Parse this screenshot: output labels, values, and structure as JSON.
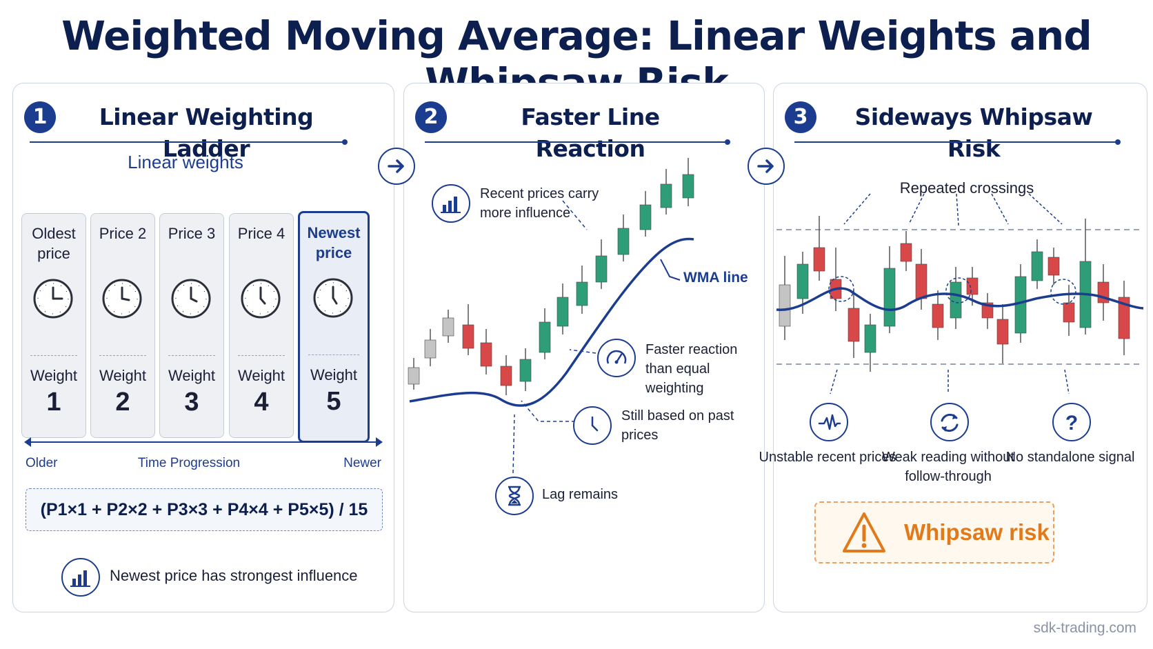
{
  "title": "Weighted Moving Average: Linear Weights and Whipsaw Risk",
  "footer": "sdk-trading.com",
  "panel1": {
    "number": "1",
    "title": "Linear Weighting Ladder",
    "subtitle": "Linear weights",
    "cards": [
      {
        "label": "Oldest price",
        "weight_label": "Weight",
        "weight": "1"
      },
      {
        "label": "Price 2",
        "weight_label": "Weight",
        "weight": "2"
      },
      {
        "label": "Price 3",
        "weight_label": "Weight",
        "weight": "3"
      },
      {
        "label": "Price 4",
        "weight_label": "Weight",
        "weight": "4"
      },
      {
        "label": "Newest price",
        "weight_label": "Weight",
        "weight": "5"
      }
    ],
    "timeline": {
      "left": "Older",
      "center": "Time Progression",
      "right": "Newer"
    },
    "formula": "(P1×1 + P2×2 + P3×3 + P4×4 + P5×5) / 15",
    "note": "Newest price has strongest influence"
  },
  "panel2": {
    "number": "2",
    "title": "Faster Line Reaction",
    "callouts": {
      "recent": "Recent prices carry more influence",
      "wma": "WMA line",
      "faster": "Faster reaction than equal weighting",
      "past": "Still based on past prices",
      "lag": "Lag remains"
    }
  },
  "panel3": {
    "number": "3",
    "title": "Sideways Whipsaw Risk",
    "crossings": "Repeated crossings",
    "items": [
      {
        "label": "Unstable recent prices",
        "icon": "pulse-icon"
      },
      {
        "label": "Weak reading without follow-through",
        "icon": "refresh-icon"
      },
      {
        "label": "No standalone signal",
        "icon": "question-icon"
      }
    ],
    "warning": "Whipsaw risk"
  },
  "colors": {
    "navy": "#0d1f4e",
    "accent": "#1c3d8f",
    "green": "#2e9e78",
    "red": "#d94848",
    "gray": "#c4c4c4",
    "warning": "#e07a1a"
  }
}
